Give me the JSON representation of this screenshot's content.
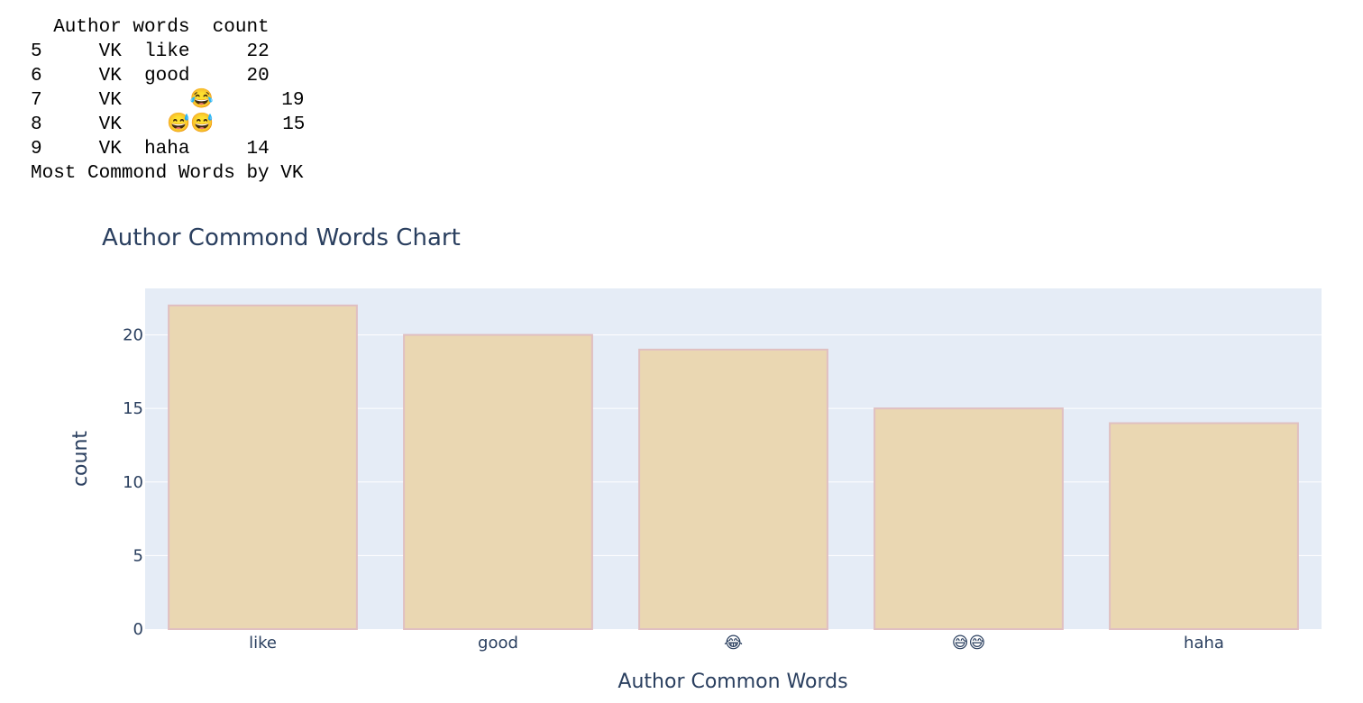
{
  "console": {
    "header": "  Author words  count",
    "rows": [
      {
        "index": "5",
        "author": "VK",
        "word": "like",
        "count": "22"
      },
      {
        "index": "6",
        "author": "VK",
        "word": "good",
        "count": "20"
      },
      {
        "index": "7",
        "author": "VK",
        "word": "😂",
        "count": "19"
      },
      {
        "index": "8",
        "author": "VK",
        "word": "😅😅",
        "count": "15"
      },
      {
        "index": "9",
        "author": "VK",
        "word": "haha",
        "count": "14"
      }
    ],
    "caption": "Most Commond Words by VK"
  },
  "chart_data": {
    "type": "bar",
    "title": "Author Commond Words Chart",
    "xlabel": "Author Common Words",
    "ylabel": "count",
    "categories": [
      "like",
      "good",
      "😂",
      "😅😅",
      "haha"
    ],
    "values": [
      22,
      20,
      19,
      15,
      14
    ],
    "ylim": [
      0,
      23.16
    ],
    "yticks": [
      0,
      5,
      10,
      15,
      20
    ],
    "grid": true,
    "legend": "none",
    "colors": {
      "plot_bg": "#e5ecf6",
      "bar_fill": "#ead7b2",
      "bar_stroke": "#e0bfc1",
      "grid": "#ffffff",
      "text": "#2a3f5f"
    }
  }
}
